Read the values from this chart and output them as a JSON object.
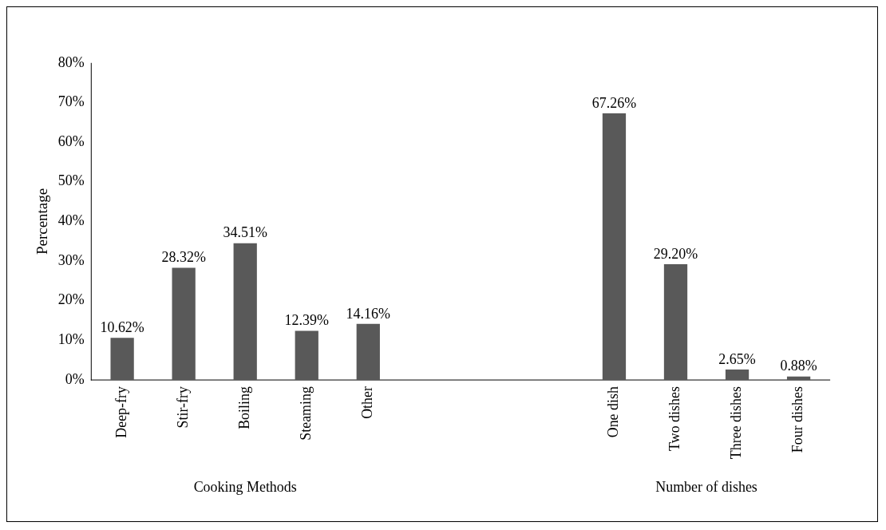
{
  "chart_data": {
    "type": "bar",
    "ylabel": "Percentage",
    "categories": [
      "Deep-fry",
      "Stir-fry",
      "Boiling",
      "Steaming",
      "Other",
      null,
      null,
      null,
      "One dish",
      "Two dishes",
      "Three dishes",
      "Four dishes"
    ],
    "values": [
      10.62,
      28.32,
      34.51,
      12.39,
      14.16,
      null,
      null,
      null,
      67.26,
      29.2,
      2.65,
      0.88
    ],
    "value_labels": [
      "10.62%",
      "28.32%",
      "34.51%",
      "12.39%",
      "14.16%",
      null,
      null,
      null,
      "67.26%",
      "29.20%",
      "2.65%",
      "0.88%"
    ],
    "color": "#595959",
    "ylim": [
      0,
      80
    ],
    "yticks": [
      {
        "value": 0,
        "label": "0%"
      },
      {
        "value": 10,
        "label": "10%"
      },
      {
        "value": 20,
        "label": "20%"
      },
      {
        "value": 30,
        "label": "30%"
      },
      {
        "value": 40,
        "label": "40%"
      },
      {
        "value": 50,
        "label": "50%"
      },
      {
        "value": 60,
        "label": "60%"
      },
      {
        "value": 70,
        "label": "70%"
      },
      {
        "value": 80,
        "label": "80%"
      }
    ],
    "grid": false,
    "legend": false,
    "annotations": [
      "Cooking Methods",
      "Number of dishes"
    ]
  }
}
